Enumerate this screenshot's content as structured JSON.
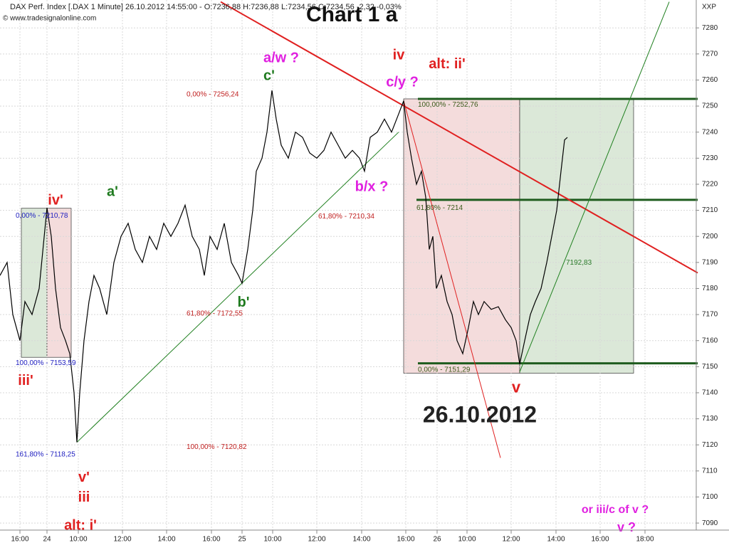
{
  "chart_data": {
    "type": "line",
    "header": "DAX Perf. Index [.DAX 1 Minute] 26.10.2012 14:55:00 - O:7236,88 H:7236,88 L:7234,56 C:7234,56 -2,32 -0,03%",
    "copyright": "© www.tradesignalonline.com",
    "title": "Chart 1 a",
    "axis_symbol": "XXP",
    "xlim": [
      0,
      978
    ],
    "ylim": [
      7087.3,
      7290.7
    ],
    "grid": true,
    "yticks": [
      7090,
      7100,
      7110,
      7120,
      7130,
      7140,
      7150,
      7160,
      7170,
      7180,
      7190,
      7200,
      7210,
      7220,
      7230,
      7240,
      7250,
      7260,
      7270,
      7280
    ],
    "xticks": [
      {
        "value": 28,
        "label": "16:00"
      },
      {
        "value": 66,
        "label": "24"
      },
      {
        "value": 110,
        "label": "10:00"
      },
      {
        "value": 172,
        "label": "12:00"
      },
      {
        "value": 234,
        "label": "14:00"
      },
      {
        "value": 297,
        "label": "16:00"
      },
      {
        "value": 340,
        "label": "25"
      },
      {
        "value": 383,
        "label": "10:00"
      },
      {
        "value": 445,
        "label": "12:00"
      },
      {
        "value": 508,
        "label": "14:00"
      },
      {
        "value": 570,
        "label": "16:00"
      },
      {
        "value": 614,
        "label": "26"
      },
      {
        "value": 656,
        "label": "10:00"
      },
      {
        "value": 718,
        "label": "12:00"
      },
      {
        "value": 781,
        "label": "14:00"
      },
      {
        "value": 843,
        "label": "16:00"
      },
      {
        "value": 906,
        "label": "18:00"
      }
    ],
    "series": [
      {
        "name": "DAX",
        "color": "#000000",
        "x": [
          0,
          10,
          18,
          28,
          35,
          45,
          55,
          66,
          72,
          78,
          85,
          92,
          98,
          104,
          108,
          112,
          118,
          125,
          132,
          140,
          150,
          160,
          170,
          180,
          190,
          200,
          210,
          220,
          230,
          240,
          250,
          260,
          270,
          280,
          287,
          295,
          305,
          315,
          325,
          335,
          340,
          348,
          355,
          360,
          368,
          375,
          382,
          388,
          395,
          405,
          415,
          425,
          435,
          445,
          455,
          465,
          475,
          485,
          495,
          505,
          512,
          520,
          530,
          540,
          550,
          560,
          567,
          572,
          578,
          585,
          592,
          598,
          603,
          608,
          613,
          620,
          628,
          635,
          642,
          650,
          658,
          665,
          672,
          680,
          690,
          700,
          710,
          718,
          725,
          730,
          737,
          745,
          752,
          760,
          768,
          775,
          782,
          788,
          793,
          797
        ],
        "values": [
          7185,
          7190,
          7170,
          7160,
          7175,
          7170,
          7180,
          7211,
          7200,
          7180,
          7165,
          7160,
          7155,
          7140,
          7121,
          7140,
          7160,
          7175,
          7185,
          7180,
          7170,
          7190,
          7200,
          7205,
          7195,
          7190,
          7200,
          7195,
          7205,
          7200,
          7205,
          7212,
          7200,
          7195,
          7185,
          7200,
          7195,
          7205,
          7190,
          7185,
          7182,
          7195,
          7210,
          7225,
          7230,
          7240,
          7256,
          7245,
          7235,
          7230,
          7240,
          7238,
          7232,
          7230,
          7233,
          7240,
          7235,
          7230,
          7233,
          7230,
          7225,
          7238,
          7240,
          7245,
          7240,
          7247,
          7252,
          7240,
          7230,
          7220,
          7225,
          7215,
          7195,
          7200,
          7180,
          7185,
          7175,
          7170,
          7160,
          7155,
          7165,
          7175,
          7170,
          7175,
          7172,
          7173,
          7168,
          7165,
          7160,
          7151,
          7160,
          7170,
          7175,
          7180,
          7190,
          7200,
          7210,
          7225,
          7237,
          7238
        ]
      }
    ],
    "boxes": [
      {
        "x": [
          567,
          730
        ],
        "y": [
          7147.5,
          7252.76
        ],
        "color": "#f4dcdc"
      },
      {
        "x": [
          730,
          890
        ],
        "y": [
          7147.5,
          7252.76
        ],
        "color": "#dbe8d8"
      },
      {
        "x": [
          30,
          66
        ],
        "y": [
          7153.59,
          7210.78
        ],
        "color": "#dbe8d8"
      },
      {
        "x": [
          66,
          100
        ],
        "y": [
          7153.59,
          7210.78
        ],
        "color": "#f4dcdc"
      }
    ],
    "lines": [
      {
        "x": [
          587,
          980
        ],
        "y": [
          7252.76,
          7252.76
        ],
        "color": "#1e5c1e",
        "width": 3
      },
      {
        "x": [
          585,
          980
        ],
        "y": [
          7214,
          7214
        ],
        "color": "#1e5c1e",
        "width": 3
      },
      {
        "x": [
          587,
          980
        ],
        "y": [
          7151.29,
          7151.29
        ],
        "color": "#1e5c1e",
        "width": 3
      },
      {
        "x": [
          310,
          980
        ],
        "y": [
          7290,
          7186
        ],
        "color": "#e02020",
        "width": 2
      },
      {
        "x": [
          567,
          703
        ],
        "y": [
          7252,
          7115
        ],
        "color": "#e02020",
        "width": 1
      },
      {
        "x": [
          108,
          560
        ],
        "y": [
          7121,
          7240
        ],
        "color": "#208020",
        "width": 1
      },
      {
        "x": [
          730,
          940
        ],
        "y": [
          7148,
          7290
        ],
        "color": "#208020",
        "width": 1
      }
    ],
    "annotations": [
      {
        "text": "a/w ?",
        "x": 395,
        "y": 7268.3,
        "color": "#e020e0",
        "size": 20
      },
      {
        "text": "c'",
        "x": 378,
        "y": 7261.4,
        "color": "#1e7a1e",
        "size": 20
      },
      {
        "text": "iv",
        "x": 560,
        "y": 7269.3,
        "color": "#e02020",
        "size": 20
      },
      {
        "text": "alt: ii'",
        "x": 628,
        "y": 7266,
        "color": "#e02020",
        "size": 20
      },
      {
        "text": "c/y ?",
        "x": 565,
        "y": 7259,
        "color": "#e020e0",
        "size": 20
      },
      {
        "text": "a'",
        "x": 158,
        "y": 7216.9,
        "color": "#1e7a1e",
        "size": 20
      },
      {
        "text": "b/x ?",
        "x": 522,
        "y": 7218.8,
        "color": "#e020e0",
        "size": 20
      },
      {
        "text": "iv'",
        "x": 78,
        "y": 7213.6,
        "color": "#e02020",
        "size": 20
      },
      {
        "text": "b'",
        "x": 342,
        "y": 7174.5,
        "color": "#1e7a1e",
        "size": 20
      },
      {
        "text": "iii'",
        "x": 36,
        "y": 7144.5,
        "color": "#e02020",
        "size": 20
      },
      {
        "text": "v",
        "x": 725,
        "y": 7141.7,
        "color": "#e02020",
        "size": 22
      },
      {
        "text": "26.10.2012",
        "x": 674,
        "y": 7131,
        "color": "#222222",
        "size": 32
      },
      {
        "text": "v'",
        "x": 118,
        "y": 7107.3,
        "color": "#e02020",
        "size": 20
      },
      {
        "text": "iii",
        "x": 118,
        "y": 7099.6,
        "color": "#e02020",
        "size": 20
      },
      {
        "text": "alt: i'",
        "x": 113,
        "y": 7088.9,
        "color": "#e02020",
        "size": 20
      },
      {
        "text": "or iii/c of v ?",
        "x": 864,
        "y": 7095,
        "color": "#e020e0",
        "size": 16
      },
      {
        "text": "v ?",
        "x": 880,
        "y": 7088,
        "color": "#e020e0",
        "size": 18
      }
    ],
    "fib_labels": [
      {
        "text": "0,00% - 7256,24",
        "x": 262,
        "y": 7254.4,
        "color": "#c02020"
      },
      {
        "text": "61,80% - 7210,34",
        "x": 447,
        "y": 7207.6,
        "color": "#c02020"
      },
      {
        "text": "61,80% - 7172,55",
        "x": 262,
        "y": 7170.3,
        "color": "#c02020"
      },
      {
        "text": "100,00% - 7120,82",
        "x": 262,
        "y": 7119.2,
        "color": "#c02020"
      },
      {
        "text": "0,00% - 7210,78",
        "x": 22,
        "y": 7207.9,
        "color": "#2020c0"
      },
      {
        "text": "100,00% - 7153,59",
        "x": 22,
        "y": 7151.3,
        "color": "#2020c0"
      },
      {
        "text": "161,80% - 7118,25",
        "x": 22,
        "y": 7116.3,
        "color": "#2020c0"
      },
      {
        "text": "100,00% - 7252,76",
        "x": 587,
        "y": 7250.5,
        "color": "#3a5a1a"
      },
      {
        "text": "61,80% - 7214",
        "x": 585,
        "y": 7210.9,
        "color": "#3a5a1a"
      },
      {
        "text": "0,00% - 7151,29",
        "x": 587,
        "y": 7148.7,
        "color": "#3a5a1a"
      },
      {
        "text": "7192,83",
        "x": 795,
        "y": 7189.9,
        "color": "#2a7a2a"
      }
    ]
  }
}
